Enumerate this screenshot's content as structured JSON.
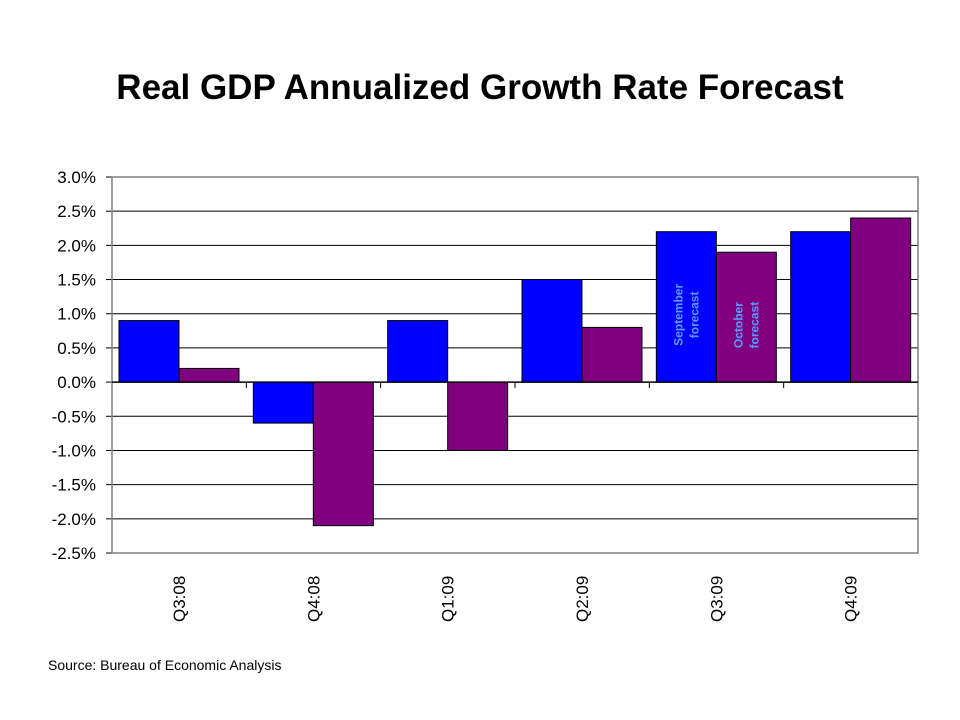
{
  "chart_data": {
    "type": "bar",
    "title": "Real GDP Annualized Growth Rate Forecast",
    "categories": [
      "Q3:08",
      "Q4:08",
      "Q1:09",
      "Q2:09",
      "Q3:09",
      "Q4:09"
    ],
    "series": [
      {
        "values": [
          0.9,
          -0.6,
          0.9,
          1.5,
          2.2,
          2.2
        ],
        "color": "#0000ff"
      },
      {
        "values": [
          0.2,
          -2.1,
          -1.0,
          0.8,
          1.9,
          2.4
        ],
        "color": "#800080"
      }
    ],
    "ylim": [
      -2.5,
      3.0
    ],
    "yticks": [
      "3.0%",
      "2.5%",
      "2.0%",
      "1.5%",
      "1.0%",
      "0.5%",
      "0.0%",
      "-0.5%",
      "-1.0%",
      "-1.5%",
      "-2.0%",
      "-2.5%"
    ],
    "ytick_values": [
      3.0,
      2.5,
      2.0,
      1.5,
      1.0,
      0.5,
      0.0,
      -0.5,
      -1.0,
      -1.5,
      -2.0,
      -2.5
    ],
    "grid": true,
    "annotations": [
      {
        "series": 0,
        "category": "Q3:09",
        "lines": [
          "September",
          "forecast"
        ]
      },
      {
        "series": 1,
        "category": "Q3:09",
        "lines": [
          "October",
          "forecast"
        ]
      }
    ],
    "source": "Source:  Bureau of Economic Analysis"
  }
}
